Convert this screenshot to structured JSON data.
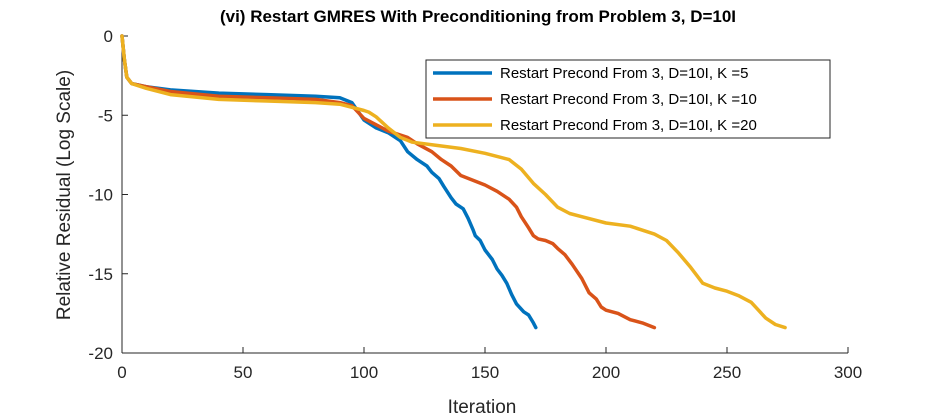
{
  "chart_data": {
    "type": "line",
    "title": "(vi) Restart GMRES With Preconditioning from Problem 3, D=10I",
    "xlabel": "Iteration",
    "ylabel": "Relative Residual (Log Scale)",
    "xlim": [
      0,
      300
    ],
    "ylim": [
      -20,
      0
    ],
    "xticks": [
      0,
      50,
      100,
      150,
      200,
      250,
      300
    ],
    "yticks": [
      0,
      -5,
      -10,
      -15,
      -20
    ],
    "grid": false,
    "legend_position": "top-right",
    "series": [
      {
        "name": "Restart Precond From 3, D=10I, K =5",
        "color": "#0072BD",
        "x": [
          0,
          1,
          2,
          4,
          10,
          20,
          40,
          60,
          80,
          90,
          95,
          100,
          105,
          110,
          115,
          118,
          122,
          126,
          128,
          131,
          133,
          136,
          138,
          141,
          143,
          145,
          146,
          148,
          150,
          153,
          155,
          157,
          159,
          161,
          163,
          166,
          168,
          170,
          171
        ],
        "y": [
          0,
          -1.5,
          -2.6,
          -3.0,
          -3.2,
          -3.4,
          -3.6,
          -3.7,
          -3.8,
          -3.9,
          -4.2,
          -5.3,
          -5.8,
          -6.1,
          -6.6,
          -7.3,
          -7.8,
          -8.2,
          -8.6,
          -9.0,
          -9.5,
          -10.2,
          -10.6,
          -10.9,
          -11.5,
          -12.2,
          -12.6,
          -12.9,
          -13.5,
          -14.1,
          -14.7,
          -15.1,
          -15.6,
          -16.3,
          -16.9,
          -17.4,
          -17.6,
          -18.1,
          -18.4
        ]
      },
      {
        "name": "Restart Precond From 3, D=10I, K =10",
        "color": "#D95319",
        "x": [
          0,
          1,
          2,
          4,
          10,
          20,
          40,
          60,
          80,
          90,
          95,
          100,
          110,
          118,
          122,
          128,
          132,
          136,
          140,
          145,
          150,
          155,
          160,
          163,
          165,
          168,
          170,
          172,
          175,
          178,
          180,
          183,
          186,
          190,
          193,
          196,
          198,
          200,
          205,
          210,
          215,
          220
        ],
        "y": [
          0,
          -1.5,
          -2.6,
          -3.0,
          -3.2,
          -3.5,
          -3.8,
          -3.9,
          -4.0,
          -4.2,
          -4.4,
          -5.2,
          -6.0,
          -6.4,
          -6.8,
          -7.3,
          -7.8,
          -8.2,
          -8.8,
          -9.1,
          -9.4,
          -9.8,
          -10.3,
          -10.8,
          -11.4,
          -12.1,
          -12.6,
          -12.8,
          -12.9,
          -13.1,
          -13.4,
          -13.8,
          -14.4,
          -15.3,
          -16.2,
          -16.6,
          -17.1,
          -17.3,
          -17.5,
          -17.9,
          -18.1,
          -18.4
        ]
      },
      {
        "name": "Restart Precond From 3, D=10I, K =20",
        "color": "#EDB120",
        "x": [
          0,
          1,
          2,
          4,
          10,
          20,
          40,
          60,
          80,
          90,
          95,
          100,
          102,
          105,
          110,
          115,
          120,
          130,
          140,
          150,
          160,
          165,
          170,
          175,
          180,
          185,
          190,
          200,
          210,
          220,
          225,
          230,
          235,
          240,
          245,
          250,
          255,
          260,
          263,
          266,
          270,
          274
        ],
        "y": [
          0,
          -1.5,
          -2.6,
          -3.0,
          -3.3,
          -3.7,
          -4.0,
          -4.1,
          -4.2,
          -4.3,
          -4.5,
          -4.7,
          -4.8,
          -5.1,
          -5.8,
          -6.4,
          -6.7,
          -6.9,
          -7.1,
          -7.4,
          -7.8,
          -8.4,
          -9.3,
          -10.0,
          -10.8,
          -11.2,
          -11.4,
          -11.8,
          -12.0,
          -12.5,
          -12.9,
          -13.7,
          -14.6,
          -15.6,
          -15.9,
          -16.1,
          -16.4,
          -16.8,
          -17.3,
          -17.8,
          -18.2,
          -18.4
        ]
      }
    ]
  }
}
